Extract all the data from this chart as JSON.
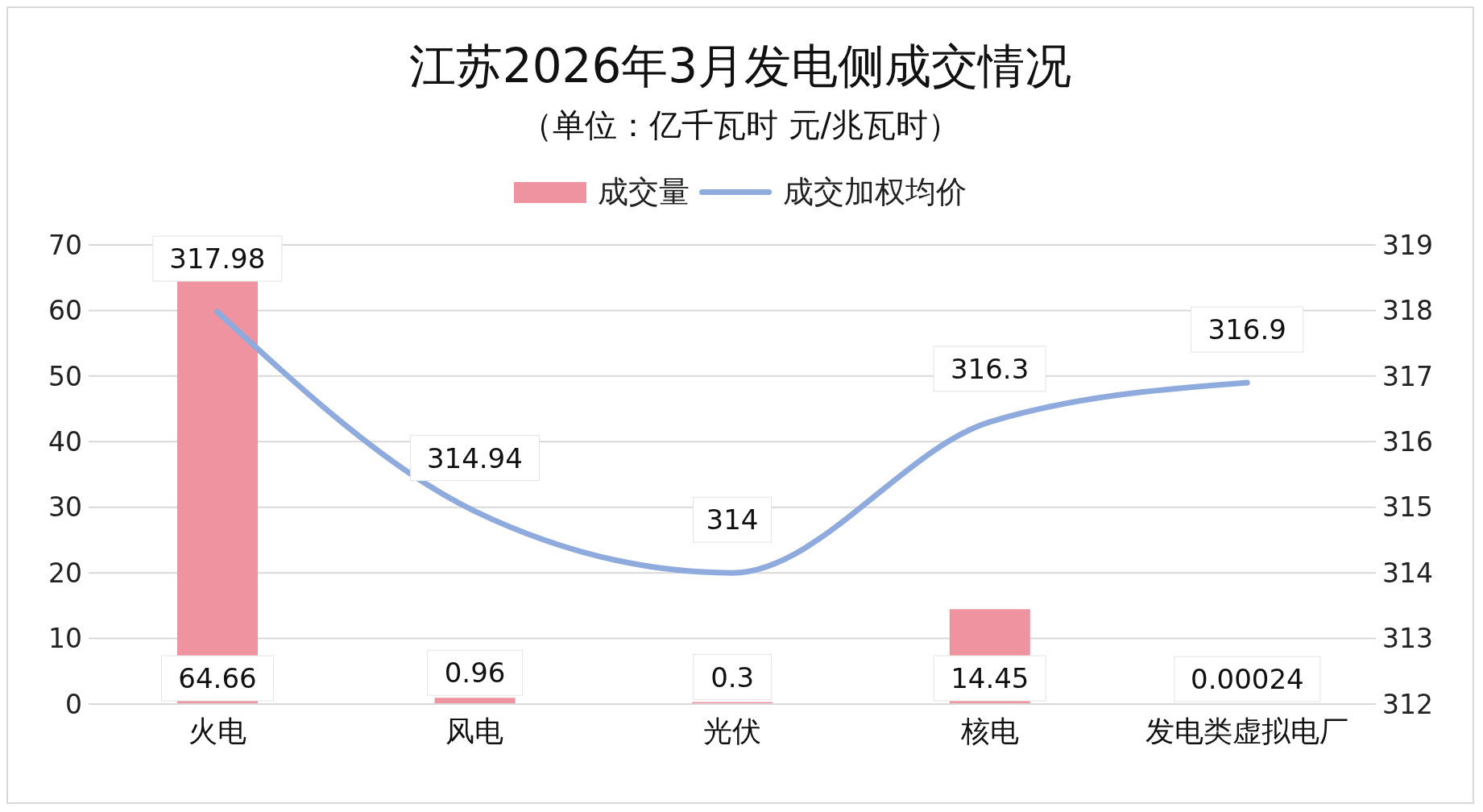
{
  "chart_data": {
    "type": "bar",
    "title": "江苏2026年3月发电侧成交情况",
    "subtitle": "（单位：亿千瓦时 元/兆瓦时）",
    "categories": [
      "火电",
      "风电",
      "光伏",
      "核电",
      "发电类虚拟电厂"
    ],
    "series": [
      {
        "name": "成交量",
        "color": "#ee939f",
        "values": [
          64.66,
          0.96,
          0.3,
          14.45,
          0.00024
        ]
      },
      {
        "name": "成交加权均价",
        "type": "line",
        "axis": "y2",
        "color": "#8faadc",
        "values": [
          317.98,
          314.94,
          314,
          316.3,
          316.9
        ]
      }
    ],
    "ylim": [
      0,
      70
    ],
    "yticks": [
      0,
      10,
      20,
      30,
      40,
      50,
      60,
      70
    ],
    "y2lim": [
      312,
      319
    ],
    "y2ticks": [
      312,
      313,
      314,
      315,
      316,
      317,
      318,
      319
    ],
    "grid": "y",
    "legend": "top",
    "data_labels": true,
    "marker": "none"
  }
}
